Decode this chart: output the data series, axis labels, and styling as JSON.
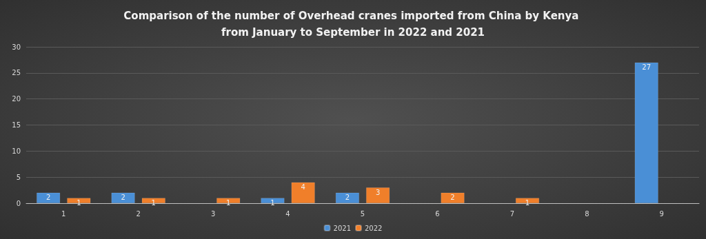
{
  "chart_data": {
    "type": "bar",
    "title": "Comparison of the number of Overhead cranes imported from China by Kenya from January to September in 2022 and 2021",
    "categories": [
      "1",
      "2",
      "3",
      "4",
      "5",
      "6",
      "7",
      "8",
      "9"
    ],
    "series": [
      {
        "name": "2021",
        "color": "#4a8fd6",
        "values": [
          2,
          2,
          null,
          1,
          2,
          null,
          null,
          null,
          27
        ]
      },
      {
        "name": "2022",
        "color": "#f07f2a",
        "values": [
          1,
          1,
          1,
          4,
          3,
          2,
          1,
          null,
          null
        ]
      }
    ],
    "ylim": [
      0,
      30
    ],
    "yticks": [
      0,
      5,
      10,
      15,
      20,
      25,
      30
    ],
    "grid": "y",
    "legend": "bottom",
    "data_labels": true
  }
}
